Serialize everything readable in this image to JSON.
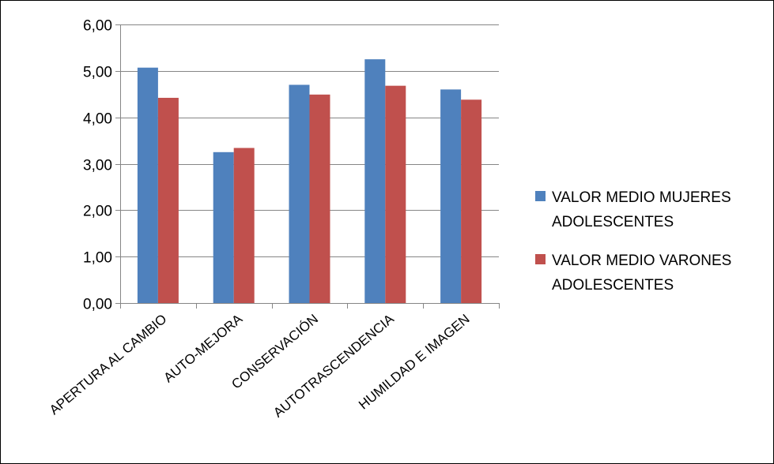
{
  "chart_data": {
    "type": "bar",
    "categories": [
      "APERTURA AL CAMBIO",
      "AUTO-MEJORA",
      "CONSERVACIÓN",
      "AUTOTRASCENDENCIA",
      "HUMILDAD E IMAGEN"
    ],
    "series": [
      {
        "name": "VALOR MEDIO MUJERES ADOLESCENTES",
        "legend_lines": [
          "VALOR MEDIO MUJERES",
          "ADOLESCENTES"
        ],
        "color": "#4f81bd",
        "values": [
          5.07,
          3.25,
          4.7,
          5.25,
          4.6
        ]
      },
      {
        "name": "VALOR MEDIO VARONES ADOLESCENTES",
        "legend_lines": [
          "VALOR MEDIO VARONES",
          "ADOLESCENTES"
        ],
        "color": "#c0504d",
        "values": [
          4.42,
          3.34,
          4.49,
          4.68,
          4.38
        ]
      }
    ],
    "ylim": [
      0,
      6
    ],
    "y_ticks": [
      "0,00",
      "1,00",
      "2,00",
      "3,00",
      "4,00",
      "5,00",
      "6,00"
    ],
    "grid": true,
    "legend_position": "right",
    "gridline_color": "#868686",
    "axis_color": "#868686"
  }
}
